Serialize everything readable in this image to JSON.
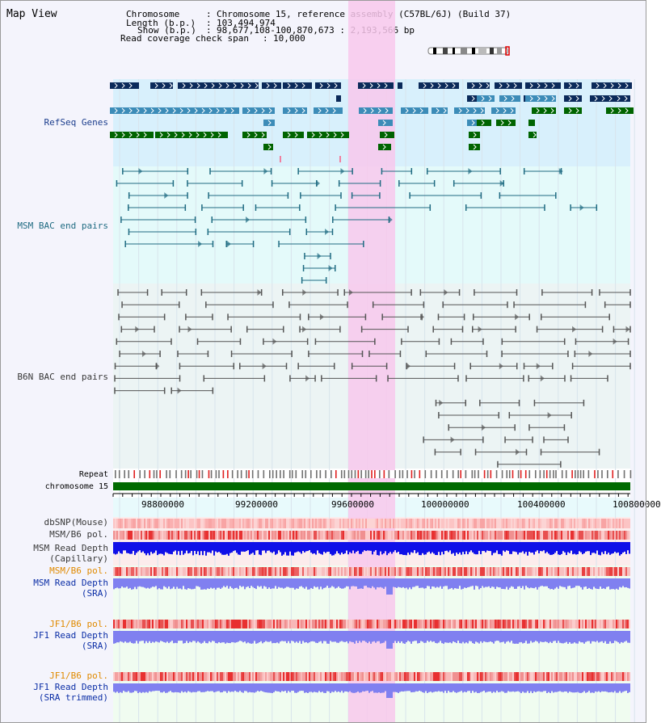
{
  "app": {
    "title": "Map View"
  },
  "info": {
    "chromosome_label": "Chromosome",
    "chromosome_value": "Chromosome 15, reference assembly (C57BL/6J) (Build 37)",
    "length_label": "Length (b.p.)",
    "length_value": "103,494,974",
    "show_label": "Show (b.p.)",
    "show_value": "98,677,108-100,870,673 : 2,193,566 bp",
    "coverage_label": "Read coverage check span",
    "coverage_value": "10,000"
  },
  "tracks": {
    "refseq": "RefSeq Genes",
    "msm_bac": "MSM BAC end pairs",
    "b6n_bac": "B6N BAC end pairs",
    "repeat": "Repeat",
    "chrom": "chromosome 15",
    "dbsnp": "dbSNP(Mouse)",
    "msm_b6_pol": "MSM/B6 pol.",
    "msm_depth_cap_1": "MSM Read Depth",
    "msm_depth_cap_2": "(Capillary)",
    "msm_b6_pol_2": "MSM/B6 pol.",
    "msm_depth_sra_1": "MSM Read Depth",
    "msm_depth_sra_2": "(SRA)",
    "jf1_pol_1": "JF1/B6 pol.",
    "jf1_depth_sra_1": "JF1 Read Depth",
    "jf1_depth_sra_2": "(SRA)",
    "jf1_pol_2": "JF1/B6 pol.",
    "jf1_depth_trim_1": "JF1 Read Depth",
    "jf1_depth_trim_2": "(SRA trimmed)"
  },
  "axis": {
    "ticks": [
      "98800000",
      "99200000",
      "99600000",
      "100000000",
      "100400000",
      "100800000"
    ]
  },
  "colors": {
    "gene_navy": "#0b2a5a",
    "gene_blue": "#3c8cb8",
    "gene_green": "#006400",
    "bac_teal": "#1f6b82",
    "bac_gray": "#555555",
    "highlight": "#f8c8ec",
    "depth_blue": "#1010e8",
    "depth_light": "#8080f0",
    "pol_red": "#e83030"
  }
}
